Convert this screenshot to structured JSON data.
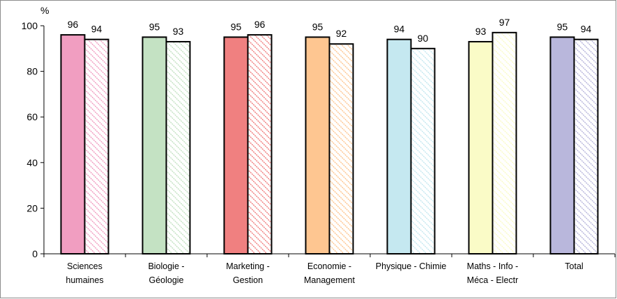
{
  "chart_data": {
    "type": "bar",
    "unit": "%",
    "categories": [
      [
        "Sciences",
        "humaines"
      ],
      [
        "Biologie -",
        "Géologie"
      ],
      [
        "Marketing -",
        "Gestion"
      ],
      [
        "Economie -",
        "Management"
      ],
      [
        "Physique - Chimie"
      ],
      [
        "Maths - Info -",
        "Méca - Electr"
      ],
      [
        "Total"
      ]
    ],
    "series": [
      {
        "values": [
          96,
          95,
          95,
          95,
          94,
          93,
          95
        ],
        "pattern": "solid"
      },
      {
        "values": [
          94,
          93,
          96,
          92,
          90,
          97,
          94
        ],
        "pattern": "hatched"
      }
    ],
    "colors": [
      "#f19ec1",
      "#c4e2c3",
      "#f08080",
      "#fec691",
      "#c5e8f0",
      "#fafbc7",
      "#b9b7dc"
    ],
    "ylim": [
      0,
      100
    ],
    "yticks": [
      0,
      20,
      40,
      60,
      80,
      100
    ],
    "grid": false,
    "legend": "none"
  }
}
